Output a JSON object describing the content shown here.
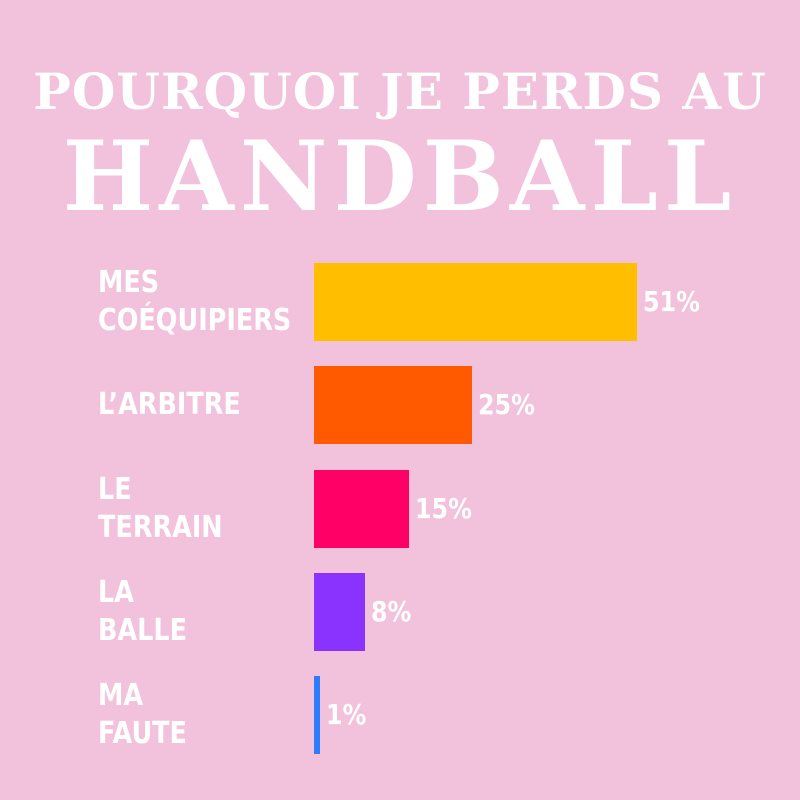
{
  "chart_data": {
    "type": "bar",
    "orientation": "horizontal",
    "title_lines": [
      "POURQUOI JE PERDS AU",
      "HANDBALL"
    ],
    "categories": [
      "MES\nCOÉQUIPIERS",
      "L’ARBITRE",
      "LE\nTERRAIN",
      "LA\nBALLE",
      "MA\nFAUTE"
    ],
    "values": [
      51,
      25,
      15,
      8,
      1
    ],
    "value_labels": [
      "51%",
      "25%",
      "15%",
      "8%",
      "1%"
    ],
    "colors": [
      "#ffbf00",
      "#ff5a00",
      "#ff0066",
      "#8a33ff",
      "#2f7bff"
    ]
  }
}
